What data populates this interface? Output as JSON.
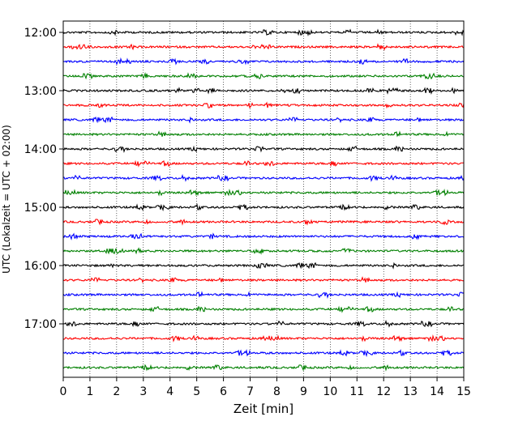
{
  "chart_data": {
    "type": "line",
    "title": "",
    "xlabel": "Zeit  [min]",
    "ylabel": "UTC (Lokalzeit = UTC + 02:00)",
    "xlim": [
      0,
      15
    ],
    "x_ticks": [
      "0",
      "1",
      "2",
      "3",
      "4",
      "5",
      "6",
      "7",
      "8",
      "9",
      "10",
      "11",
      "12",
      "13",
      "14",
      "15"
    ],
    "y_ticks": [
      "12:00",
      "13:00",
      "14:00",
      "15:00",
      "16:00",
      "17:00"
    ],
    "grid": "vertical dotted",
    "colors": [
      "#000000",
      "#ff0000",
      "#0000ff",
      "#008000"
    ],
    "series": [
      {
        "start": "12:00"
      },
      {
        "start": "12:15"
      },
      {
        "start": "12:30"
      },
      {
        "start": "12:45"
      },
      {
        "start": "13:00"
      },
      {
        "start": "13:15"
      },
      {
        "start": "13:30"
      },
      {
        "start": "13:45"
      },
      {
        "start": "14:00"
      },
      {
        "start": "14:15"
      },
      {
        "start": "14:30"
      },
      {
        "start": "14:45"
      },
      {
        "start": "15:00"
      },
      {
        "start": "15:15"
      },
      {
        "start": "15:30"
      },
      {
        "start": "15:45"
      },
      {
        "start": "16:00"
      },
      {
        "start": "16:15"
      },
      {
        "start": "16:30"
      },
      {
        "start": "16:45"
      },
      {
        "start": "17:00"
      },
      {
        "start": "17:15"
      },
      {
        "start": "17:30"
      },
      {
        "start": "17:45"
      }
    ]
  }
}
